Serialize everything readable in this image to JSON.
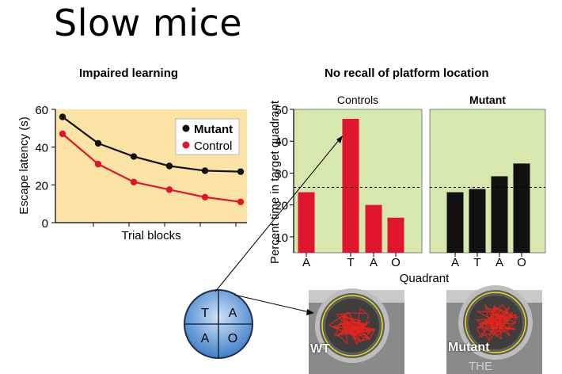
{
  "slide": {
    "title": "Slow mice",
    "left_heading": "Impaired learning",
    "right_heading": "No recall of platform location",
    "maze_quadrants": [
      "T",
      "A",
      "A",
      "O"
    ],
    "wt_label": "WT",
    "mutant_label": "Mutant",
    "watermark": "THE"
  },
  "colors": {
    "left_bg": "#fbe3a5",
    "right_bg": "#d6e8ae",
    "mutant": "#111111",
    "control": "#e0152e",
    "maze_blue": "#4f8fd6"
  },
  "chart_data": [
    {
      "type": "line",
      "title": "Impaired learning",
      "xlabel": "Trial blocks",
      "ylabel": "Escape latency (s)",
      "ylim": [
        0,
        60
      ],
      "yticks": [
        0,
        20,
        40,
        60
      ],
      "x": [
        1,
        2,
        3,
        4,
        5,
        6
      ],
      "series": [
        {
          "name": "Mutant",
          "values": [
            56,
            42,
            35,
            30,
            27.5,
            27
          ]
        },
        {
          "name": "Control",
          "values": [
            47,
            31,
            21.5,
            17.5,
            13.5,
            11
          ]
        }
      ],
      "legend": "top-right"
    },
    {
      "type": "bar",
      "title": "No recall of platform location",
      "xlabel": "Quadrant",
      "ylabel": "Percent time in target quadrant",
      "ylim": [
        5,
        50
      ],
      "yticks": [
        10,
        20,
        30,
        40,
        50
      ],
      "chance_level": 25.5,
      "panels": [
        {
          "name": "Controls",
          "categories": [
            "A",
            "T",
            "A",
            "O"
          ],
          "values": [
            24,
            47,
            20,
            16
          ]
        },
        {
          "name": "Mutant",
          "categories": [
            "A",
            "T",
            "A",
            "O"
          ],
          "values": [
            24,
            25,
            29,
            33
          ]
        }
      ]
    }
  ]
}
